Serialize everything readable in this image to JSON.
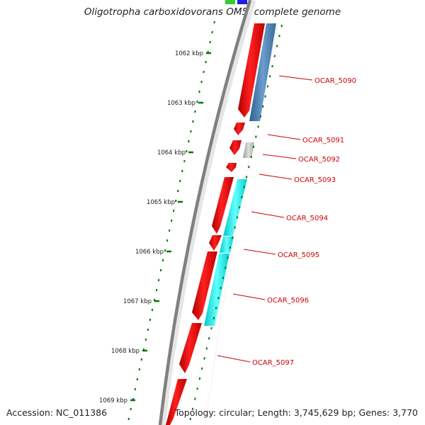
{
  "header": {
    "title": "Oligotropha carboxidovorans OM5, complete genome"
  },
  "footer": {
    "accession": "Accession: NC_011386",
    "topology": "Topology: circular; Length: 3,745,629 bp; Genes: 3,770"
  },
  "ticks": [
    {
      "kbp": 1062,
      "label": "1062 kbp"
    },
    {
      "kbp": 1063,
      "label": "1063 kbp"
    },
    {
      "kbp": 1064,
      "label": "1064 kbp"
    },
    {
      "kbp": 1065,
      "label": "1065 kbp"
    },
    {
      "kbp": 1066,
      "label": "1066 kbp"
    },
    {
      "kbp": 1067,
      "label": "1067 kbp"
    },
    {
      "kbp": 1068,
      "label": "1068 kbp"
    },
    {
      "kbp": 1069,
      "label": "1069 kbp"
    }
  ],
  "genes": [
    {
      "label": "OCAR_5090"
    },
    {
      "label": "OCAR_5091"
    },
    {
      "label": "OCAR_5092"
    },
    {
      "label": "OCAR_5093"
    },
    {
      "label": "OCAR_5094"
    },
    {
      "label": "OCAR_5095"
    },
    {
      "label": "OCAR_5096"
    },
    {
      "label": "OCAR_5097"
    }
  ],
  "colors": {
    "cds": "#ff0000",
    "backbone": "#808080",
    "tick": "#007700",
    "gene_label": "#d00000",
    "cog_blue": "#4a7fb5",
    "cog_gray": "#c0c0c0",
    "cog_cyan": "#00e6e6"
  }
}
